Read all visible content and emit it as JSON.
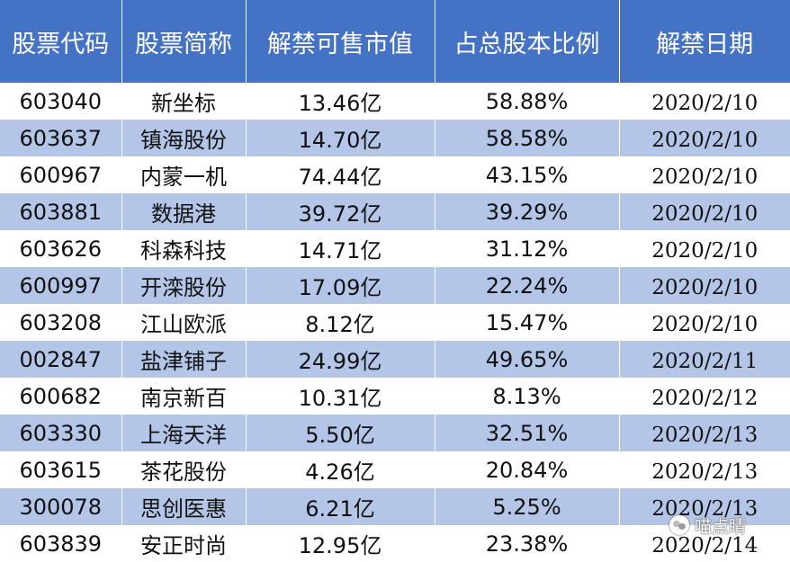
{
  "table": {
    "headers": [
      "股票代码",
      "股票简称",
      "解禁可售市值",
      "占总股本比例",
      "解禁日期"
    ],
    "rows": [
      {
        "code": "603040",
        "name": "新坐标",
        "value": "13.46亿",
        "ratio": "58.88%",
        "date": "2020/2/10"
      },
      {
        "code": "603637",
        "name": "镇海股份",
        "value": "14.70亿",
        "ratio": "58.58%",
        "date": "2020/2/10"
      },
      {
        "code": "600967",
        "name": "内蒙一机",
        "value": "74.44亿",
        "ratio": "43.15%",
        "date": "2020/2/10"
      },
      {
        "code": "603881",
        "name": "数据港",
        "value": "39.72亿",
        "ratio": "39.29%",
        "date": "2020/2/10"
      },
      {
        "code": "603626",
        "name": "科森科技",
        "value": "14.71亿",
        "ratio": "31.12%",
        "date": "2020/2/10"
      },
      {
        "code": "600997",
        "name": "开滦股份",
        "value": "17.09亿",
        "ratio": "22.24%",
        "date": "2020/2/10"
      },
      {
        "code": "603208",
        "name": "江山欧派",
        "value": "8.12亿",
        "ratio": "15.47%",
        "date": "2020/2/10"
      },
      {
        "code": "002847",
        "name": "盐津铺子",
        "value": "24.99亿",
        "ratio": "49.65%",
        "date": "2020/2/11"
      },
      {
        "code": "600682",
        "name": "南京新百",
        "value": "10.31亿",
        "ratio": "8.13%",
        "date": "2020/2/12"
      },
      {
        "code": "603330",
        "name": "上海天洋",
        "value": "5.50亿",
        "ratio": "32.51%",
        "date": "2020/2/13"
      },
      {
        "code": "603615",
        "name": "茶花股份",
        "value": "4.26亿",
        "ratio": "20.84%",
        "date": "2020/2/13"
      },
      {
        "code": "300078",
        "name": "思创医惠",
        "value": "6.21亿",
        "ratio": "5.25%",
        "date": "2020/2/13"
      },
      {
        "code": "603839",
        "name": "安正时尚",
        "value": "12.95亿",
        "ratio": "23.38%",
        "date": "2020/2/14"
      }
    ]
  },
  "watermark": {
    "text": "喵点睛",
    "icon": "wechat-icon"
  },
  "colors": {
    "header": "#4472c4",
    "stripe": "#b4c6e7",
    "row": "#ffffff"
  }
}
